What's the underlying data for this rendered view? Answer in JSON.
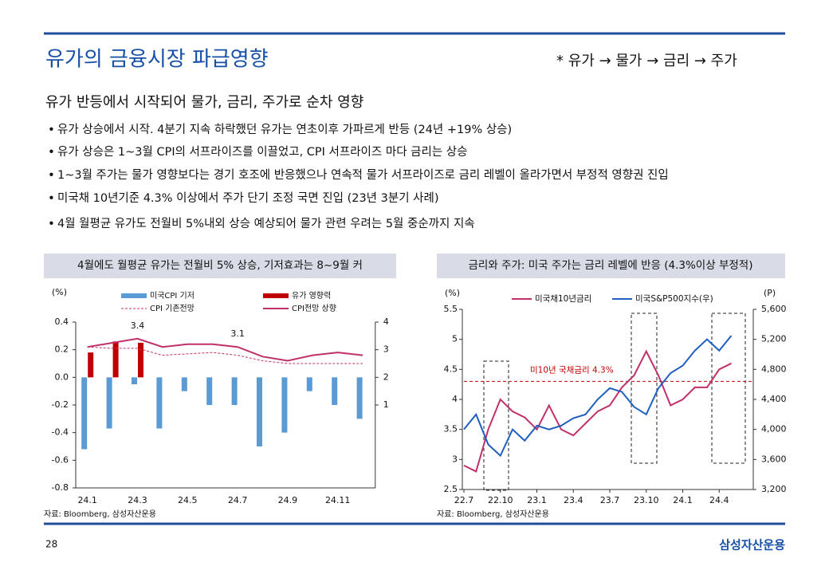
{
  "header": {
    "title": "유가의 금융시장 파급영향",
    "flow": "* 유가 → 물가 → 금리 → 주가"
  },
  "subtitle": "유가 반등에서 시작되어 물가, 금리, 주가로 순차 영향",
  "bullets": [
    "유가 상승에서 시작. 4분기 지속 하락했던 유가는 연초이후 가파르게 반등 (24년 +19% 상승)",
    "유가 상승은 1~3월 CPI의 서프라이즈를 이끌었고, CPI 서프라이즈 마다 금리는 상승",
    "1~3월 주가는 물가 영향보다는 경기 호조에 반응했으나 연속적 물가 서프라이즈로 금리 레벨이 올라가면서 부정적 영향권 진입",
    "미국채 10년기준 4.3% 이상에서 주가 단기 조정 국면 진입 (23년 3분기 사례)",
    "4월 월평균 유가도 전월비 5%내외 상승 예상되어 물가 관련 우려는 5월 중순까지 지속"
  ],
  "chart_data": [
    {
      "type": "combo",
      "title": "4월에도 월평균 유가는 전월비 5% 상승, 기저효과는 8~9월 커",
      "ylabel": "(%)",
      "categories": [
        "24.1",
        null,
        "24.3",
        null,
        "24.5",
        null,
        "24.7",
        null,
        "24.9",
        null,
        "24.11",
        null
      ],
      "ylim": [
        -0.8,
        0.4
      ],
      "yticks": [
        0.4,
        0.2,
        {
          "value": 0,
          "label": "0.0"
        },
        -0.2,
        -0.4,
        -0.6,
        -0.8
      ],
      "y2lim": [
        -2,
        4
      ],
      "y2ticks": [
        4,
        3,
        2,
        1
      ],
      "series": [
        {
          "name": "미국CPI 기저",
          "type": "bar",
          "color": "#5b9bd5",
          "values": [
            -0.52,
            -0.37,
            -0.05,
            -0.37,
            -0.1,
            -0.2,
            -0.2,
            -0.5,
            -0.4,
            -0.1,
            -0.2,
            -0.3
          ]
        },
        {
          "name": "유가 영향력",
          "type": "bar",
          "color": "#c00000",
          "values": [
            0.18,
            0.26,
            0.25,
            null,
            null,
            null,
            null,
            null,
            null,
            null,
            null,
            null
          ]
        },
        {
          "name": "CPI 기존전망",
          "type": "line",
          "dash": true,
          "axis": "y2",
          "color": "#c0306a",
          "values": [
            3.1,
            3.05,
            3.05,
            2.8,
            2.85,
            2.9,
            2.8,
            2.6,
            2.5,
            2.5,
            2.5,
            2.5
          ]
        },
        {
          "name": "CPI전망 상향",
          "type": "line",
          "axis": "y2",
          "color": "#c0306a",
          "values": [
            3.1,
            3.25,
            3.4,
            3.1,
            3.2,
            3.2,
            3.1,
            2.75,
            2.6,
            2.8,
            2.9,
            2.8
          ],
          "value_labels": [
            null,
            null,
            "3.4",
            null,
            null,
            null,
            "3.1",
            null,
            null,
            null,
            null,
            null
          ]
        }
      ],
      "source": "자료: Bloomberg, 삼성자산운용"
    },
    {
      "type": "line",
      "title": "금리와 주가: 미국 주가는 금리 레벨에 반응 (4.3%이상 부정적)",
      "ylabel": "(%)",
      "y2label": "(P)",
      "x": [
        "22.7",
        "22.8",
        "22.9",
        "22.10",
        "22.11",
        "22.12",
        "23.1",
        "23.2",
        "23.3",
        "23.4",
        "23.5",
        "23.6",
        "23.7",
        "23.8",
        "23.9",
        "23.10",
        "23.11",
        "23.12",
        "24.1",
        "24.2",
        "24.3",
        "24.4",
        "24.5"
      ],
      "xticks": [
        "22.7",
        "22.10",
        "23.1",
        "23.4",
        "23.7",
        "23.10",
        "24.1",
        "24.4"
      ],
      "ylim": [
        2.5,
        5.5
      ],
      "yticks": [
        2.5,
        3,
        3.5,
        4,
        4.5,
        5,
        5.5
      ],
      "y2lim": [
        3200,
        5600
      ],
      "y2ticks": [
        {
          "value": 3200,
          "label": "3,200"
        },
        {
          "value": 3600,
          "label": "3,600"
        },
        {
          "value": 4000,
          "label": "4,000"
        },
        {
          "value": 4400,
          "label": "4,400"
        },
        {
          "value": 4800,
          "label": "4,800"
        },
        {
          "value": 5200,
          "label": "5,200"
        },
        {
          "value": 5600,
          "label": "5,600"
        }
      ],
      "series": [
        {
          "name": "미국채10년금리",
          "color": "#c0306a",
          "values": [
            2.9,
            2.8,
            3.5,
            4.0,
            3.8,
            3.7,
            3.5,
            3.9,
            3.5,
            3.4,
            3.6,
            3.8,
            3.9,
            4.2,
            4.4,
            4.8,
            4.4,
            3.9,
            4.0,
            4.2,
            4.2,
            4.5,
            4.6
          ]
        },
        {
          "name": "미국S&P500지수(우)",
          "color": "#1f5fbf",
          "axis": "y2",
          "values": [
            4000,
            4200,
            3800,
            3650,
            4000,
            3850,
            4050,
            4000,
            4050,
            4150,
            4200,
            4400,
            4550,
            4500,
            4300,
            4200,
            4550,
            4750,
            4850,
            5050,
            5200,
            5050,
            5250
          ]
        }
      ],
      "reference_line": {
        "value": 4.3,
        "label": "미10년 국채금리 4.3%",
        "color": "#c00000"
      },
      "source": "자료: Bloomberg, 삼성자산운용"
    }
  ],
  "footer": {
    "page": "28",
    "brand": "삼성자산운용"
  }
}
